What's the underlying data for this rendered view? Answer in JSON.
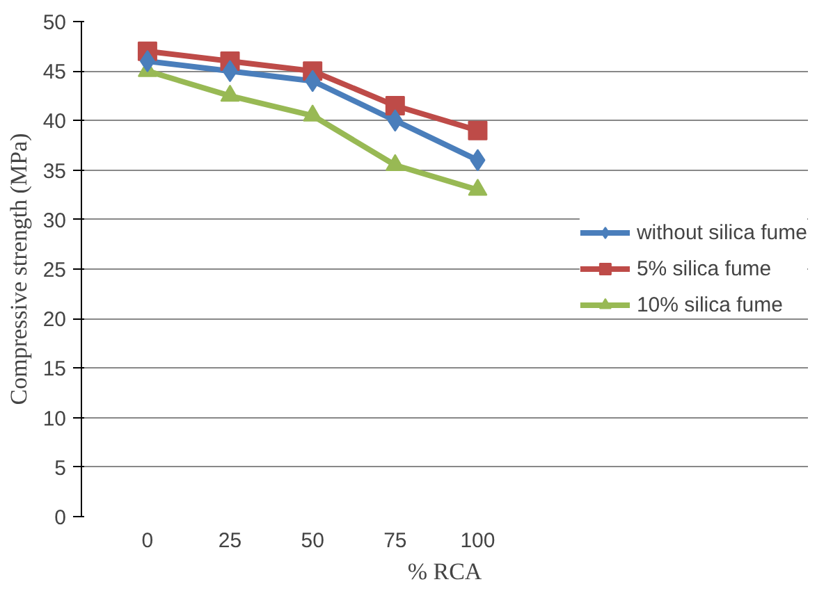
{
  "chart_data": {
    "type": "line",
    "xlabel": "% RCA",
    "ylabel": "Compressive strength (MPa)",
    "categories": [
      "0",
      "25",
      "50",
      "75",
      "100"
    ],
    "series": [
      {
        "name": "without silica fume",
        "color": "#4a7ebb",
        "marker": "diamond",
        "values": [
          46,
          45,
          44,
          40,
          36
        ]
      },
      {
        "name": "5% silica fume",
        "color": "#be4b48",
        "marker": "square",
        "values": [
          47,
          46,
          45,
          41.5,
          39
        ]
      },
      {
        "name": "10% silica fume",
        "color": "#98b954",
        "marker": "triangle",
        "values": [
          45,
          42.5,
          40.5,
          35.5,
          33
        ]
      }
    ],
    "ylim": [
      0,
      50
    ],
    "yticks": [
      0,
      5,
      10,
      15,
      20,
      25,
      30,
      35,
      40,
      45,
      50
    ],
    "grid": "y",
    "legend": "right"
  }
}
